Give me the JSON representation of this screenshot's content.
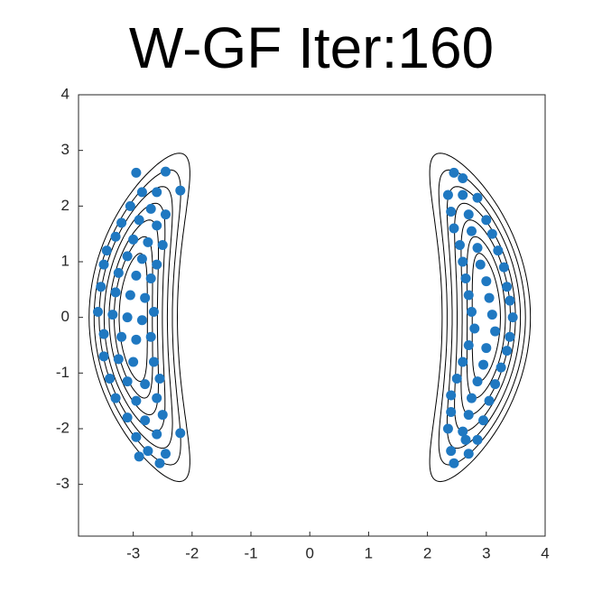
{
  "chart_data": {
    "type": "scatter",
    "title": "W-GF Iter:160",
    "color": "#1f78c1",
    "xlim": [
      -3.93,
      4
    ],
    "ylim": [
      -3.93,
      4
    ],
    "xticks": [
      -3,
      -2,
      -1,
      0,
      1,
      2,
      3,
      4
    ],
    "yticks": [
      -3,
      -2,
      -1,
      0,
      1,
      2,
      3,
      4
    ],
    "x": [
      -2.95,
      -2.45,
      -2.2,
      -2.6,
      -2.85,
      -3.05,
      -2.7,
      -2.45,
      -3.2,
      -2.9,
      -2.6,
      -3.3,
      -3.0,
      -2.75,
      -2.5,
      -3.45,
      -3.1,
      -2.85,
      -2.6,
      -3.5,
      -3.25,
      -2.95,
      -2.7,
      -3.55,
      -3.3,
      -3.05,
      -2.8,
      -3.6,
      -3.35,
      -3.1,
      -2.85,
      -2.65,
      -3.5,
      -3.2,
      -2.95,
      -2.7,
      -3.5,
      -3.25,
      -3.0,
      -2.65,
      -3.4,
      -3.1,
      -2.8,
      -2.55,
      -3.3,
      -2.95,
      -2.6,
      -3.1,
      -2.8,
      -2.5,
      -2.95,
      -2.6,
      -2.2,
      -2.75,
      -2.45,
      -2.55,
      -2.9,
      2.45,
      2.6,
      2.35,
      2.6,
      2.85,
      2.4,
      2.7,
      3.0,
      2.45,
      2.75,
      3.1,
      2.55,
      2.85,
      3.2,
      2.6,
      2.9,
      3.3,
      2.65,
      3.0,
      3.35,
      2.7,
      3.05,
      3.4,
      2.75,
      3.1,
      3.45,
      2.8,
      3.15,
      3.4,
      2.7,
      3.0,
      3.35,
      2.6,
      2.95,
      3.25,
      2.5,
      2.85,
      3.15,
      2.4,
      2.75,
      3.05,
      2.4,
      2.7,
      2.95,
      2.35,
      2.6,
      2.85,
      2.4,
      2.7,
      2.45,
      2.65
    ],
    "values": [
      2.6,
      2.62,
      2.28,
      2.25,
      2.25,
      2.0,
      1.95,
      1.85,
      1.7,
      1.75,
      1.65,
      1.45,
      1.4,
      1.35,
      1.3,
      1.2,
      1.1,
      1.05,
      0.95,
      0.95,
      0.8,
      0.75,
      0.7,
      0.55,
      0.45,
      0.4,
      0.35,
      0.1,
      0.05,
      0.0,
      -0.05,
      0.1,
      -0.3,
      -0.35,
      -0.4,
      -0.35,
      -0.7,
      -0.75,
      -0.8,
      -0.8,
      -1.1,
      -1.15,
      -1.2,
      -1.1,
      -1.45,
      -1.5,
      -1.45,
      -1.8,
      -1.85,
      -1.75,
      -2.15,
      -2.1,
      -2.08,
      -2.4,
      -2.45,
      -2.62,
      -2.5,
      2.6,
      2.5,
      2.2,
      2.2,
      2.15,
      1.9,
      1.85,
      1.75,
      1.6,
      1.55,
      1.5,
      1.3,
      1.25,
      1.2,
      1.0,
      0.95,
      0.9,
      0.7,
      0.65,
      0.55,
      0.4,
      0.35,
      0.3,
      0.1,
      0.05,
      0.0,
      -0.2,
      -0.25,
      -0.35,
      -0.5,
      -0.55,
      -0.6,
      -0.8,
      -0.85,
      -0.9,
      -1.1,
      -1.15,
      -1.2,
      -1.4,
      -1.45,
      -1.5,
      -1.7,
      -1.75,
      -1.85,
      -2.0,
      -2.05,
      -2.2,
      -2.4,
      -2.45,
      -2.62,
      -2.2
    ]
  }
}
